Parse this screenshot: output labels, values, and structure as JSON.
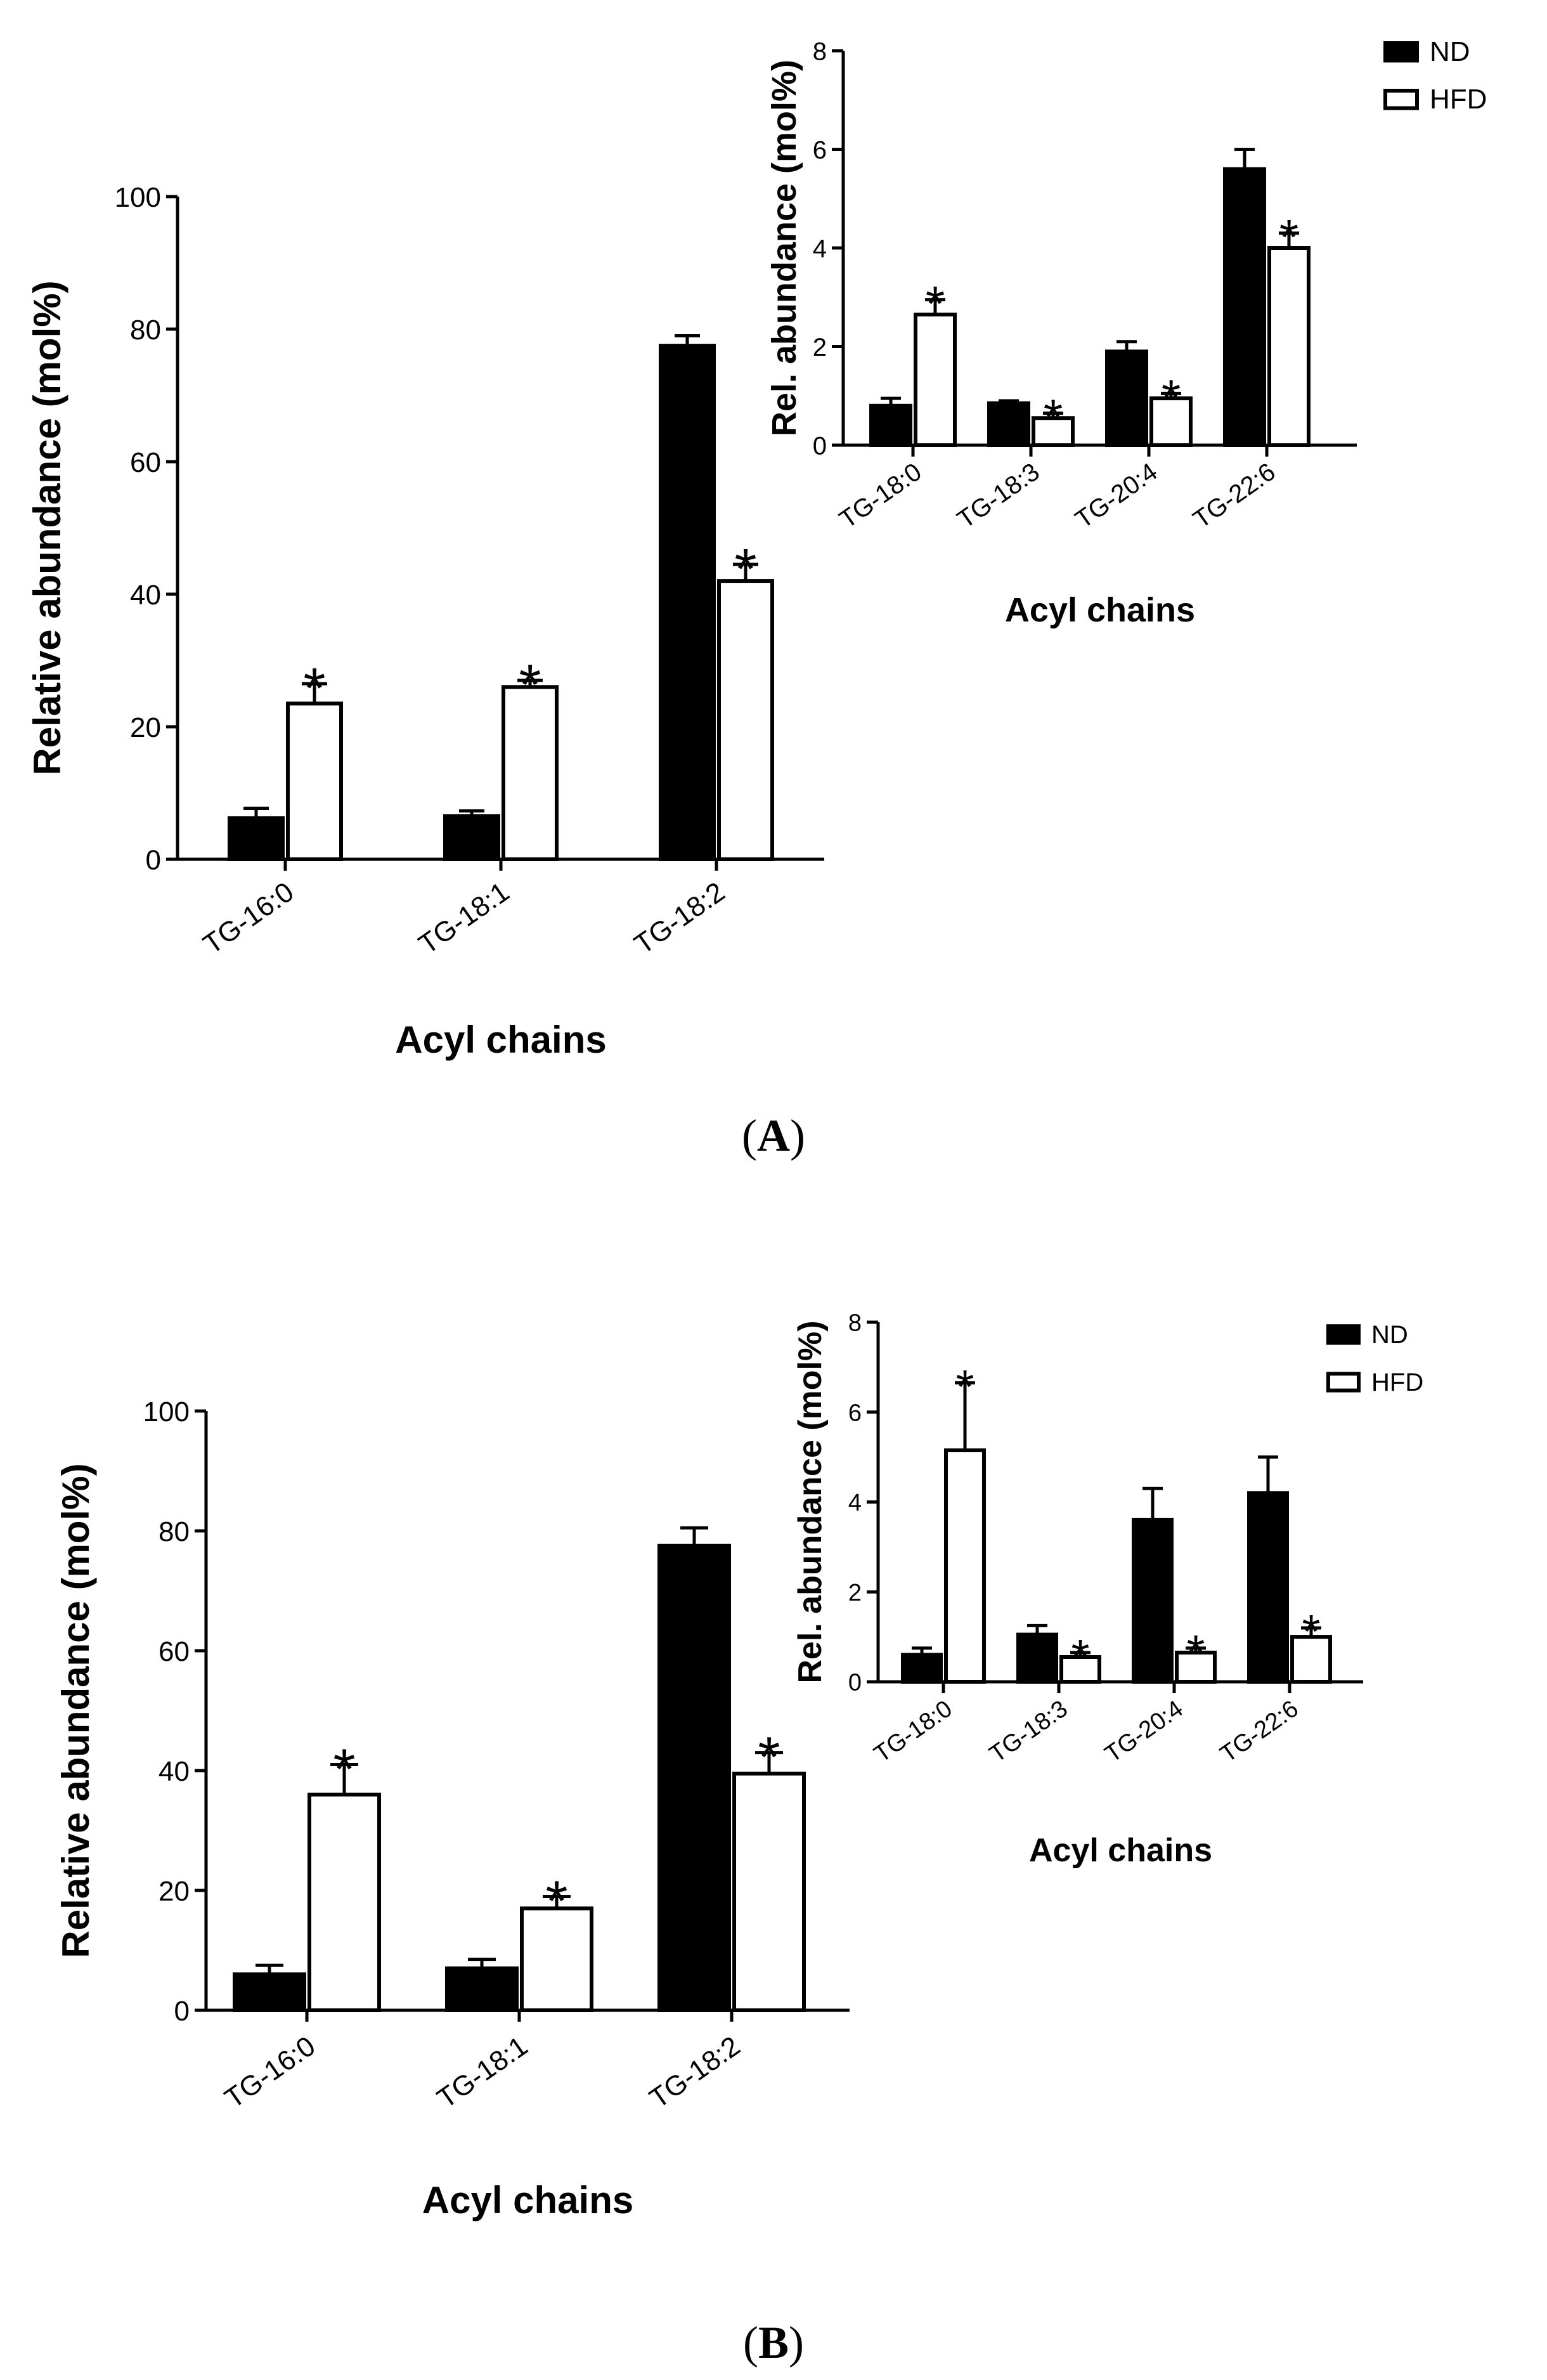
{
  "colors": {
    "nd": "#000000",
    "hfd": "#ffffff",
    "edge": "#000000"
  },
  "panel_labels": [
    {
      "open": "(",
      "letter": "A",
      "close": ")"
    },
    {
      "open": "(",
      "letter": "B",
      "close": ")"
    }
  ],
  "chart_data": [
    {
      "id": "A-main",
      "type": "bar",
      "panel": "A",
      "xlabel": "Acyl chains",
      "ylabel": "Relative abundance (mol%)",
      "ylim": [
        0,
        100
      ],
      "yticks": [
        "0",
        "20",
        "40",
        "60",
        "80",
        "100"
      ],
      "categories": [
        "TG-16:0",
        "TG-18:1",
        "TG-18:2"
      ],
      "series": [
        {
          "name": "ND",
          "values": [
            6.2,
            6.5,
            77.5
          ],
          "errors": [
            1.5,
            0.8,
            1.5
          ]
        },
        {
          "name": "HFD",
          "values": [
            23.5,
            26.0,
            42.0
          ],
          "errors": [
            3.0,
            1.0,
            2.5
          ],
          "significant": [
            "*",
            "*",
            "*"
          ]
        }
      ]
    },
    {
      "id": "A-inset",
      "type": "bar",
      "panel": "A",
      "xlabel": "Acyl chains",
      "ylabel": "Rel. abundance (mol%)",
      "ylim": [
        0,
        8
      ],
      "yticks": [
        "0",
        "2",
        "4",
        "6",
        "8"
      ],
      "categories": [
        "TG-18:0",
        "TG-18:3",
        "TG-20:4",
        "TG-22:6"
      ],
      "legend": [
        "ND",
        "HFD"
      ],
      "series": [
        {
          "name": "ND",
          "values": [
            0.8,
            0.85,
            1.9,
            5.6
          ],
          "errors": [
            0.15,
            0.05,
            0.2,
            0.4
          ]
        },
        {
          "name": "HFD",
          "values": [
            2.65,
            0.55,
            0.95,
            4.0
          ],
          "errors": [
            0.3,
            0.1,
            0.1,
            0.3
          ],
          "significant": [
            "*",
            "*",
            "*",
            "*"
          ]
        }
      ]
    },
    {
      "id": "B-main",
      "type": "bar",
      "panel": "B",
      "xlabel": "Acyl chains",
      "ylabel": "Relative abundance (mol%)",
      "ylim": [
        0,
        100
      ],
      "yticks": [
        "0",
        "20",
        "40",
        "60",
        "80",
        "100"
      ],
      "categories": [
        "TG-16:0",
        "TG-18:1",
        "TG-18:2"
      ],
      "series": [
        {
          "name": "ND",
          "values": [
            6.0,
            7.0,
            77.5
          ],
          "errors": [
            1.5,
            1.5,
            3.0
          ]
        },
        {
          "name": "HFD",
          "values": [
            36.0,
            17.0,
            39.5
          ],
          "errors": [
            5.0,
            2.0,
            3.5
          ],
          "significant": [
            "*",
            "*",
            "*"
          ]
        }
      ]
    },
    {
      "id": "B-inset",
      "type": "bar",
      "panel": "B",
      "xlabel": "Acyl chains",
      "ylabel": "Rel. abundance (mol%)",
      "ylim": [
        0,
        8
      ],
      "yticks": [
        "0",
        "2",
        "4",
        "6",
        "8"
      ],
      "categories": [
        "TG-18:0",
        "TG-18:3",
        "TG-20:4",
        "TG-22:6"
      ],
      "legend": [
        "ND",
        "HFD"
      ],
      "series": [
        {
          "name": "ND",
          "values": [
            0.6,
            1.05,
            3.6,
            4.2
          ],
          "errors": [
            0.15,
            0.2,
            0.7,
            0.8
          ]
        },
        {
          "name": "HFD",
          "values": [
            5.15,
            0.55,
            0.65,
            1.0
          ],
          "errors": [
            1.5,
            0.1,
            0.1,
            0.2
          ],
          "significant": [
            "*",
            "*",
            "*",
            "*"
          ]
        }
      ]
    }
  ]
}
